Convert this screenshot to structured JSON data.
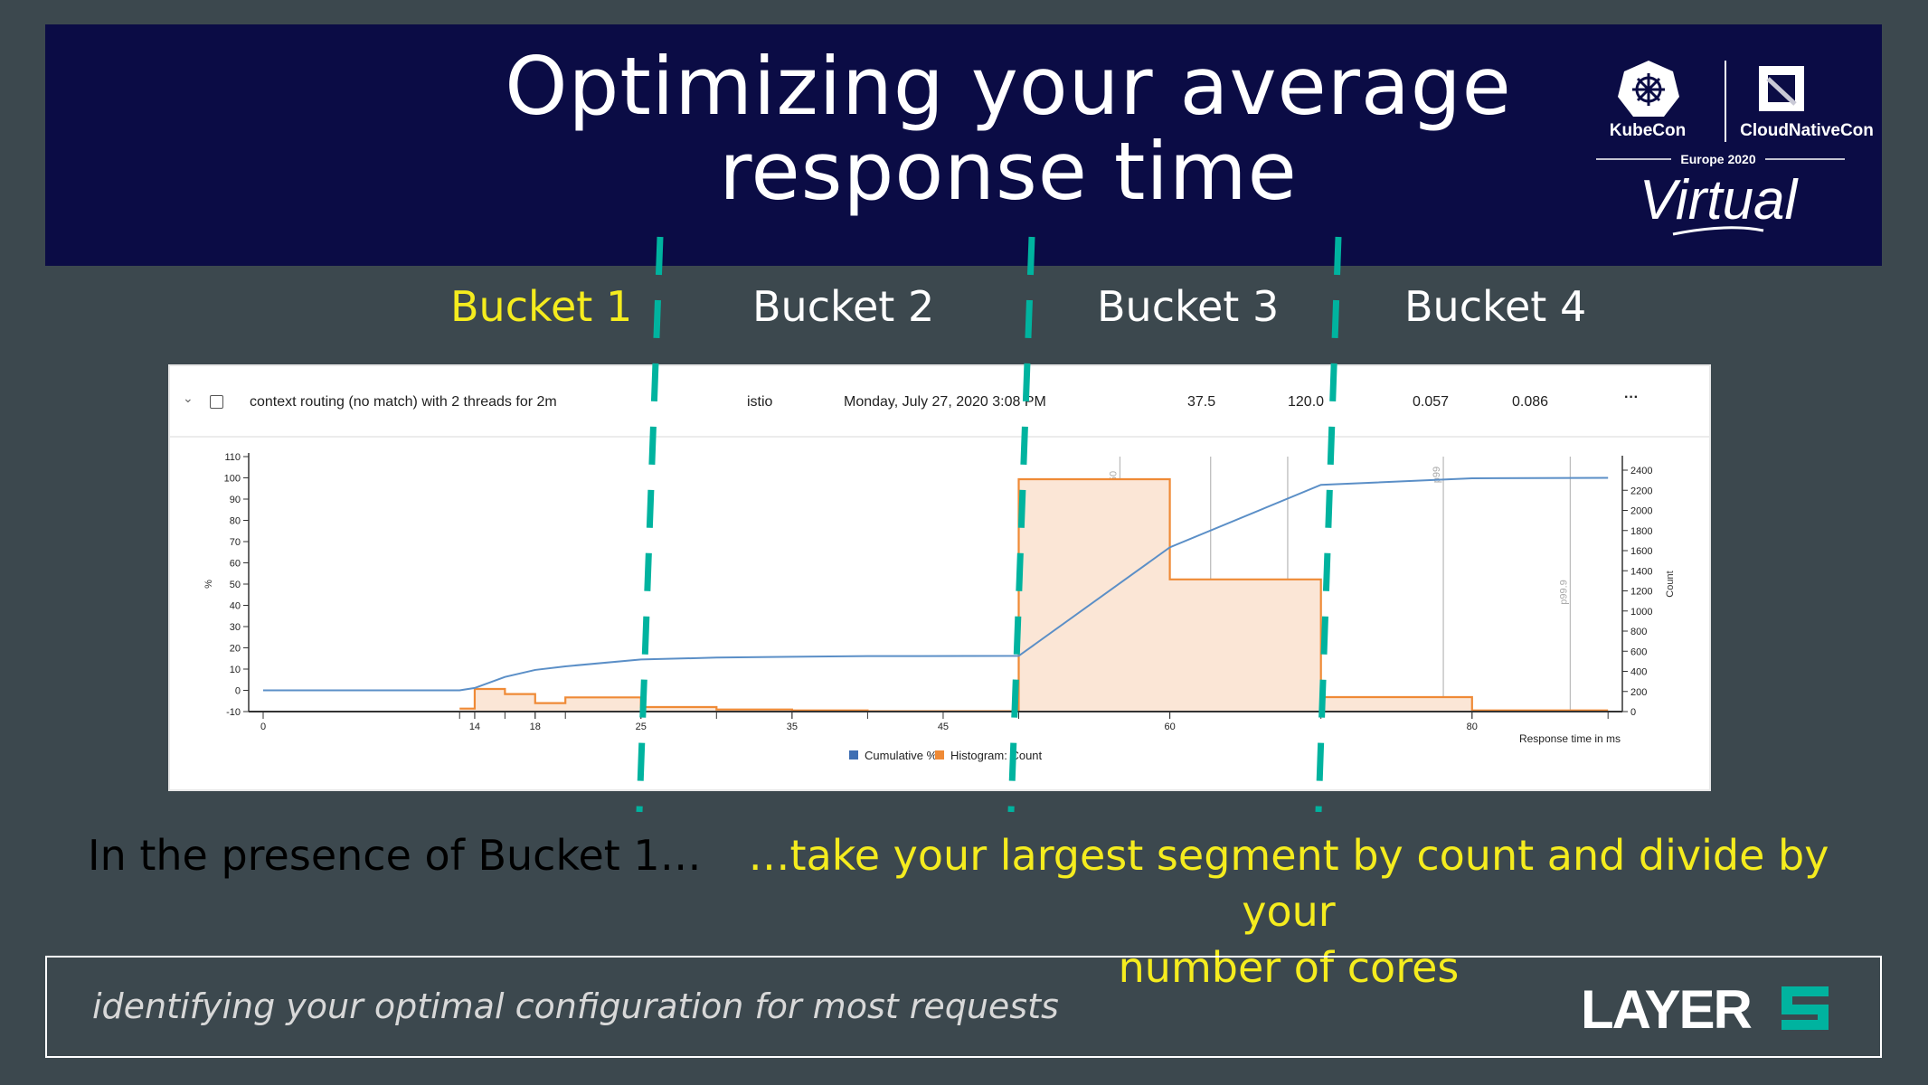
{
  "header": {
    "title_line1": "Optimizing your average",
    "title_line2": "response time",
    "logo": {
      "kubecon": "KubeCon",
      "cloudnativecon": "CloudNativeCon",
      "event": "Europe 2020",
      "virtual": "Virtual"
    }
  },
  "buckets": [
    {
      "label": "Bucket 1",
      "color": "#f5ec1e"
    },
    {
      "label": "Bucket 2",
      "color": "#ffffff"
    },
    {
      "label": "Bucket 3",
      "color": "#ffffff"
    },
    {
      "label": "Bucket 4",
      "color": "#ffffff"
    }
  ],
  "divider_color": "#00b39f",
  "result_row": {
    "name": "context routing (no match) with 2 threads for 2m",
    "mesh": "istio",
    "date": "Monday, July 27, 2020 3:08 PM",
    "qps": "37.5",
    "duration": "120.0",
    "p50": "0.057",
    "p99": "0.086",
    "menu": "···"
  },
  "chart_data": {
    "type": "bar+line",
    "xlabel": "Response time in ms",
    "ylabel_left": "%",
    "ylabel_right": "Count",
    "xlim": [
      0,
      89
    ],
    "ylim_left": [
      -10,
      110
    ],
    "ylim_right": [
      0,
      2550
    ],
    "x_ticks": [
      0,
      14,
      18,
      25,
      35,
      45,
      60,
      80
    ],
    "y_left_ticks": [
      110,
      100,
      90,
      80,
      70,
      60,
      50,
      40,
      30,
      20,
      10,
      0,
      -10
    ],
    "y_right_ticks": [
      2400,
      2200,
      2000,
      1800,
      1600,
      1400,
      1200,
      1000,
      800,
      600,
      400,
      200,
      0
    ],
    "legend": [
      "Cumulative %",
      "Histogram: Count"
    ],
    "legend_placement": "bottom",
    "colors": {
      "cumulative": "#5b8fc7",
      "histogram": "#ef8a36",
      "histogram_fill": "#fbe6d6"
    },
    "histogram": [
      {
        "from": 13,
        "to": 14,
        "count": 30
      },
      {
        "from": 14,
        "to": 16,
        "count": 225
      },
      {
        "from": 16,
        "to": 18,
        "count": 174
      },
      {
        "from": 18,
        "to": 20,
        "count": 84
      },
      {
        "from": 20,
        "to": 25,
        "count": 141
      },
      {
        "from": 25,
        "to": 30,
        "count": 45
      },
      {
        "from": 30,
        "to": 35,
        "count": 21
      },
      {
        "from": 35,
        "to": 40,
        "count": 12
      },
      {
        "from": 40,
        "to": 50,
        "count": 4
      },
      {
        "from": 50,
        "to": 60,
        "count": 2310
      },
      {
        "from": 60,
        "to": 70,
        "count": 1314
      },
      {
        "from": 70,
        "to": 80,
        "count": 144
      },
      {
        "from": 80,
        "to": 89,
        "count": 12
      }
    ],
    "cumulative": [
      [
        0,
        0
      ],
      [
        13,
        0
      ],
      [
        14,
        1.1
      ],
      [
        16,
        6.3
      ],
      [
        18,
        9.6
      ],
      [
        20,
        11.3
      ],
      [
        25,
        14.5
      ],
      [
        30,
        15.4
      ],
      [
        35,
        15.8
      ],
      [
        40,
        16.1
      ],
      [
        50,
        16.2
      ],
      [
        60,
        67.3
      ],
      [
        70,
        96.7
      ],
      [
        80,
        99.8
      ],
      [
        89,
        100
      ]
    ],
    "percentiles": [
      {
        "label": "p50",
        "x": 56.7
      },
      {
        "label": "p75",
        "x": 62.7
      },
      {
        "label": "p90",
        "x": 67.8
      },
      {
        "label": "p99",
        "x": 78.1
      },
      {
        "label": "p99.9",
        "x": 86.5
      }
    ]
  },
  "notes": {
    "left": "In the presence of Bucket 1…",
    "right_line1": "…take your largest segment by count and divide by your",
    "right_line2": "number of cores",
    "left_color": "#ffffff",
    "right_color": "#f5ec1e"
  },
  "footer": {
    "tagline": "identifying your optimal configuration for most requests",
    "logo": "LAYER5"
  }
}
